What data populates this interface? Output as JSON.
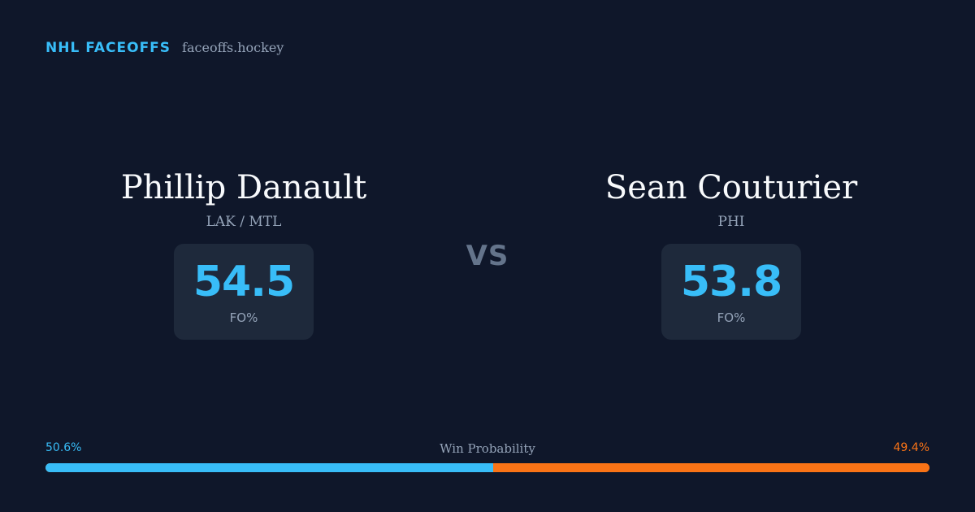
{
  "brand": {
    "title": "NHL FACEOFFS",
    "site": "faceoffs.hockey"
  },
  "players": [
    {
      "name": "Phillip Danault",
      "team": "LAK / MTL",
      "stat_value": "54.5",
      "stat_label": "FO%"
    },
    {
      "name": "Sean Couturier",
      "team": "PHI",
      "stat_value": "53.8",
      "stat_label": "FO%"
    }
  ],
  "vs_label": "VS",
  "win_probability": {
    "label": "Win Probability",
    "left_text": "50.6%",
    "right_text": "49.4%",
    "left_value": 50.6,
    "right_value": 49.4
  },
  "colors": {
    "background": "#0f172a",
    "accent_blue": "#38bdf8",
    "accent_orange": "#f97316",
    "card": "#1e293b",
    "muted": "#94a3b8"
  }
}
